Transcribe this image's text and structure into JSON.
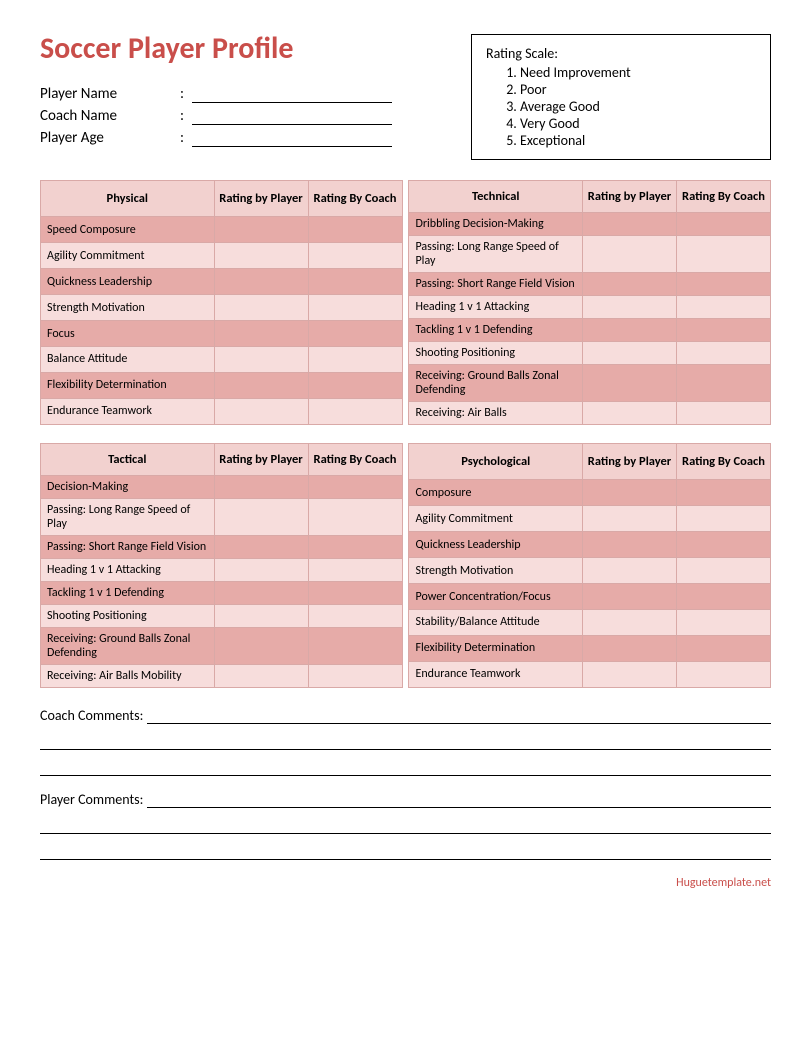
{
  "colors": {
    "title_color": "#c94e4a",
    "header_bg": "#f2d1cf",
    "row_odd_bg": "#e6aba8",
    "row_even_bg": "#f7dddc",
    "border_color": "#d9a9a7",
    "footer_color": "#c94e4a"
  },
  "title": "Soccer Player Profile",
  "fields": [
    {
      "label": "Player Name"
    },
    {
      "label": "Coach Name"
    },
    {
      "label": "Player Age"
    }
  ],
  "rating_box": {
    "title": "Rating Scale:",
    "items": [
      "Need Improvement",
      "Poor",
      "Average Good",
      "Very Good",
      "Exceptional"
    ]
  },
  "col_headers": {
    "player": "Rating by Player",
    "coach": "Rating By Coach"
  },
  "tables": {
    "physical": {
      "title": "Physical",
      "rows": [
        "Speed Composure",
        "Agility Commitment",
        "Quickness Leadership",
        "Strength Motivation",
        "Focus",
        "Balance Attitude",
        "Flexibility Determination",
        "Endurance Teamwork"
      ]
    },
    "technical": {
      "title": "Technical",
      "rows": [
        "Dribbling Decision-Making",
        "Passing: Long Range Speed of Play",
        "Passing: Short Range Field Vision",
        "Heading 1 v 1 Attacking",
        "Tackling 1 v 1 Defending",
        "Shooting Positioning",
        "Receiving: Ground Balls Zonal Defending",
        "Receiving: Air Balls"
      ]
    },
    "tactical": {
      "title": "Tactical",
      "rows": [
        "Decision-Making",
        "Passing: Long Range Speed of Play",
        "Passing: Short Range Field Vision",
        "Heading 1 v 1 Attacking",
        "Tackling 1 v 1 Defending",
        "Shooting Positioning",
        "Receiving: Ground Balls Zonal Defending",
        "Receiving: Air Balls Mobility"
      ]
    },
    "psychological": {
      "title": "Psychological",
      "rows": [
        "Composure",
        "Agility Commitment",
        "Quickness Leadership",
        "Strength Motivation",
        "Power Concentration/Focus",
        "Stability/Balance Attitude",
        "Flexibility Determination",
        "Endurance Teamwork"
      ]
    }
  },
  "comments": {
    "coach": "Coach Comments:",
    "player": "Player Comments:"
  },
  "footer": "Huguetemplate.net"
}
